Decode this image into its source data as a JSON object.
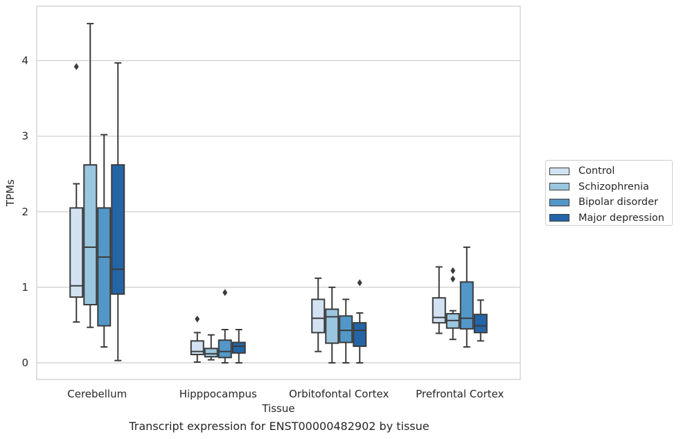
{
  "caption": "Transcript expression for ENST00000482902 by tissue",
  "chart_data": {
    "type": "box",
    "xlabel": "Tissue",
    "ylabel": "TPMs",
    "ylim": [
      -0.22,
      4.72
    ],
    "yticks": [
      0,
      1,
      2,
      3,
      4
    ],
    "grid": "horizontal",
    "legend_position": "right",
    "categories": [
      "Cerebellum",
      "Hipppocampus",
      "Orbitofontal Cortex",
      "Prefrontal Cortex"
    ],
    "series": [
      {
        "name": "Control",
        "color": "#d2e2f2",
        "boxes": [
          {
            "min": 0.54,
            "q1": 0.87,
            "median": 1.02,
            "q3": 2.05,
            "max": 2.37,
            "outliers": [
              3.92
            ]
          },
          {
            "min": 0.01,
            "q1": 0.11,
            "median": 0.15,
            "q3": 0.29,
            "max": 0.4,
            "outliers": [
              0.58
            ]
          },
          {
            "min": 0.15,
            "q1": 0.4,
            "median": 0.59,
            "q3": 0.84,
            "max": 1.12,
            "outliers": []
          },
          {
            "min": 0.39,
            "q1": 0.53,
            "median": 0.6,
            "q3": 0.86,
            "max": 1.27,
            "outliers": []
          }
        ]
      },
      {
        "name": "Schizophrenia",
        "color": "#9ac6df",
        "boxes": [
          {
            "min": 0.47,
            "q1": 0.77,
            "median": 1.53,
            "q3": 2.62,
            "max": 4.49,
            "outliers": []
          },
          {
            "min": 0.04,
            "q1": 0.08,
            "median": 0.12,
            "q3": 0.19,
            "max": 0.37,
            "outliers": []
          },
          {
            "min": 0.0,
            "q1": 0.26,
            "median": 0.61,
            "q3": 0.71,
            "max": 1.0,
            "outliers": []
          },
          {
            "min": 0.31,
            "q1": 0.46,
            "median": 0.56,
            "q3": 0.65,
            "max": 0.69,
            "outliers": [
              1.11,
              1.22
            ]
          }
        ]
      },
      {
        "name": "Bipolar disorder",
        "color": "#5397c9",
        "boxes": [
          {
            "min": 0.21,
            "q1": 0.49,
            "median": 1.4,
            "q3": 2.05,
            "max": 3.02,
            "outliers": []
          },
          {
            "min": 0.0,
            "q1": 0.07,
            "median": 0.15,
            "q3": 0.3,
            "max": 0.44,
            "outliers": [
              0.93
            ]
          },
          {
            "min": 0.0,
            "q1": 0.27,
            "median": 0.43,
            "q3": 0.62,
            "max": 0.84,
            "outliers": []
          },
          {
            "min": 0.21,
            "q1": 0.45,
            "median": 0.59,
            "q3": 1.07,
            "max": 1.53,
            "outliers": []
          }
        ]
      },
      {
        "name": "Major depression",
        "color": "#2465a8",
        "boxes": [
          {
            "min": 0.03,
            "q1": 0.91,
            "median": 1.24,
            "q3": 2.62,
            "max": 3.97,
            "outliers": []
          },
          {
            "min": 0.0,
            "q1": 0.13,
            "median": 0.22,
            "q3": 0.27,
            "max": 0.44,
            "outliers": []
          },
          {
            "min": 0.0,
            "q1": 0.22,
            "median": 0.43,
            "q3": 0.53,
            "max": 0.66,
            "outliers": [
              1.06
            ]
          },
          {
            "min": 0.29,
            "q1": 0.4,
            "median": 0.49,
            "q3": 0.64,
            "max": 0.83,
            "outliers": []
          }
        ]
      }
    ]
  }
}
